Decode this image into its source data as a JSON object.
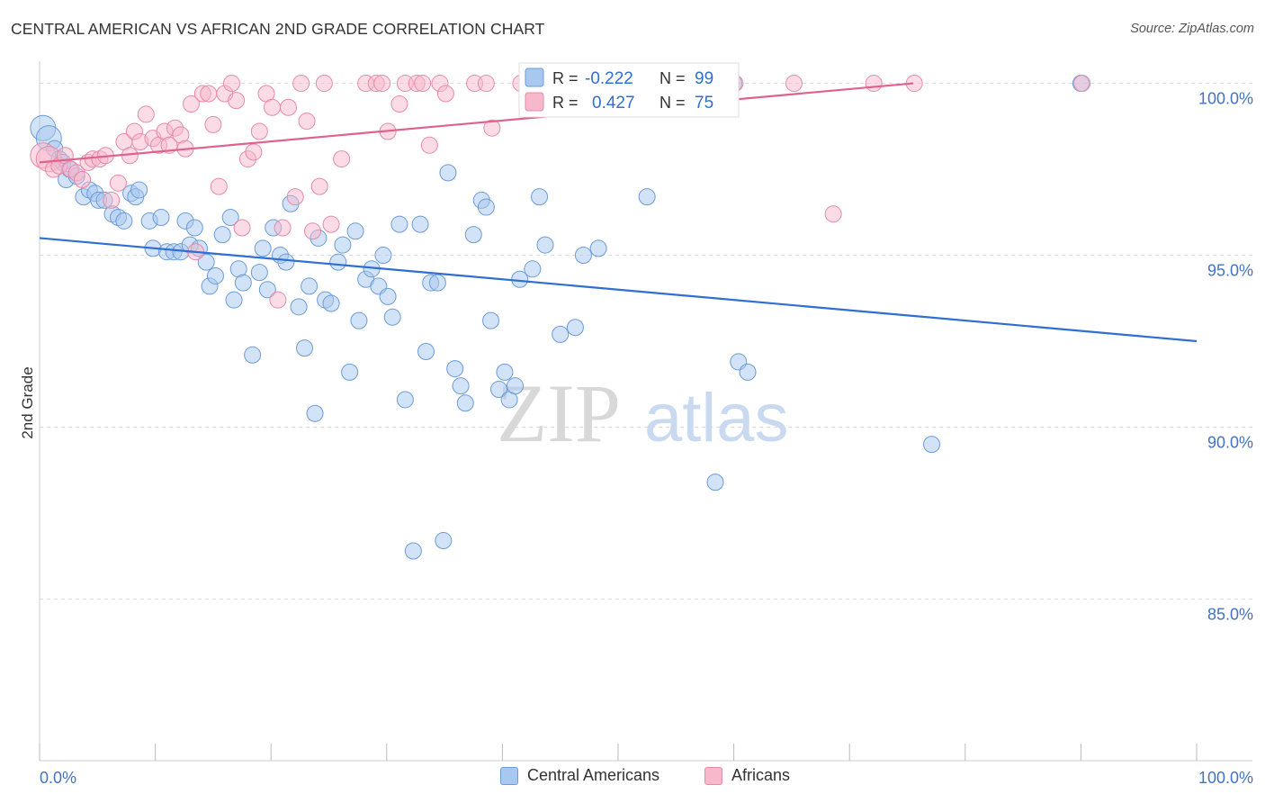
{
  "header": {
    "title": "CENTRAL AMERICAN VS AFRICAN 2ND GRADE CORRELATION CHART",
    "source": "Source: ZipAtlas.com"
  },
  "watermark": {
    "zip": "ZIP",
    "atlas": "atlas"
  },
  "colors": {
    "blue_fill": "#a8c8f0",
    "blue_stroke": "#6b9bd8",
    "blue_line": "#2f6fd0",
    "pink_fill": "#f7b8cb",
    "pink_stroke": "#e68aa8",
    "pink_line": "#e0608e",
    "axis_text": "#4472c4",
    "grid": "#dddddd"
  },
  "legend": {
    "rows": [
      {
        "r_label": "R =",
        "r_value": "-0.222",
        "n_label": "N =",
        "n_value": "99",
        "color": "blue"
      },
      {
        "r_label": "R =",
        "r_value": "0.427",
        "n_label": "N =",
        "n_value": "75",
        "color": "pink"
      }
    ]
  },
  "bottom_legend": [
    {
      "label": "Central Americans",
      "color": "blue"
    },
    {
      "label": "Africans",
      "color": "pink"
    }
  ],
  "chart_data": {
    "type": "scatter",
    "xlabel": "",
    "ylabel": "2nd Grade",
    "xlim": [
      0,
      100
    ],
    "ylim": [
      80.3,
      100.8
    ],
    "x_tick_labels": [
      "0.0%",
      "100.0%"
    ],
    "y_ticks": [
      85,
      90,
      95,
      100
    ],
    "y_tick_labels": [
      "85.0%",
      "90.0%",
      "95.0%",
      "100.0%"
    ],
    "grid": true,
    "series": [
      {
        "name": "Central Americans",
        "color": "blue",
        "trend": {
          "x": [
            0,
            100
          ],
          "y": [
            95.5,
            92.5
          ]
        },
        "points": [
          [
            0.3,
            98.7
          ],
          [
            0.8,
            98.4
          ],
          [
            1.3,
            98.1
          ],
          [
            1.7,
            97.8
          ],
          [
            2.0,
            97.7
          ],
          [
            2.3,
            97.2
          ],
          [
            2.6,
            97.5
          ],
          [
            3.2,
            97.3
          ],
          [
            3.8,
            96.7
          ],
          [
            4.3,
            96.9
          ],
          [
            4.8,
            96.8
          ],
          [
            5.1,
            96.6
          ],
          [
            5.6,
            96.6
          ],
          [
            6.3,
            96.2
          ],
          [
            6.8,
            96.1
          ],
          [
            7.3,
            96.0
          ],
          [
            7.9,
            96.8
          ],
          [
            8.3,
            96.7
          ],
          [
            8.6,
            96.9
          ],
          [
            9.5,
            96.0
          ],
          [
            9.8,
            95.2
          ],
          [
            10.5,
            96.1
          ],
          [
            11.0,
            95.1
          ],
          [
            11.6,
            95.1
          ],
          [
            12.2,
            95.1
          ],
          [
            12.6,
            96.0
          ],
          [
            13.0,
            95.3
          ],
          [
            13.4,
            95.8
          ],
          [
            13.8,
            95.2
          ],
          [
            14.4,
            94.8
          ],
          [
            14.7,
            94.1
          ],
          [
            15.2,
            94.4
          ],
          [
            15.8,
            95.6
          ],
          [
            16.5,
            96.1
          ],
          [
            16.8,
            93.7
          ],
          [
            17.2,
            94.6
          ],
          [
            17.6,
            94.2
          ],
          [
            18.4,
            92.1
          ],
          [
            19.0,
            94.5
          ],
          [
            19.3,
            95.2
          ],
          [
            19.7,
            94.0
          ],
          [
            20.2,
            95.8
          ],
          [
            20.8,
            95.0
          ],
          [
            21.3,
            94.8
          ],
          [
            21.7,
            96.5
          ],
          [
            22.4,
            93.5
          ],
          [
            22.9,
            92.3
          ],
          [
            23.3,
            94.1
          ],
          [
            23.8,
            90.4
          ],
          [
            24.1,
            95.5
          ],
          [
            24.7,
            93.7
          ],
          [
            25.2,
            93.6
          ],
          [
            25.8,
            94.8
          ],
          [
            26.2,
            95.3
          ],
          [
            26.8,
            91.6
          ],
          [
            27.3,
            95.7
          ],
          [
            27.6,
            93.1
          ],
          [
            28.2,
            94.3
          ],
          [
            28.7,
            94.6
          ],
          [
            29.3,
            94.1
          ],
          [
            29.7,
            95.0
          ],
          [
            30.1,
            93.8
          ],
          [
            30.5,
            93.2
          ],
          [
            31.1,
            95.9
          ],
          [
            31.6,
            90.8
          ],
          [
            32.3,
            86.4
          ],
          [
            32.9,
            95.9
          ],
          [
            33.4,
            92.2
          ],
          [
            33.8,
            94.2
          ],
          [
            34.4,
            94.2
          ],
          [
            34.9,
            86.7
          ],
          [
            35.3,
            97.4
          ],
          [
            35.9,
            91.7
          ],
          [
            36.4,
            91.2
          ],
          [
            36.8,
            90.7
          ],
          [
            37.5,
            95.6
          ],
          [
            38.2,
            96.6
          ],
          [
            38.6,
            96.4
          ],
          [
            39.0,
            93.1
          ],
          [
            39.7,
            91.1
          ],
          [
            40.2,
            91.6
          ],
          [
            40.6,
            90.8
          ],
          [
            41.1,
            91.2
          ],
          [
            41.5,
            94.3
          ],
          [
            42.6,
            94.6
          ],
          [
            43.2,
            96.7
          ],
          [
            43.7,
            95.3
          ],
          [
            45.0,
            92.7
          ],
          [
            46.3,
            92.9
          ],
          [
            47.0,
            95.0
          ],
          [
            48.3,
            95.2
          ],
          [
            52.0,
            100.0
          ],
          [
            52.5,
            96.7
          ],
          [
            58.4,
            88.4
          ],
          [
            60.0,
            100.0
          ],
          [
            60.4,
            91.9
          ],
          [
            61.2,
            91.6
          ],
          [
            77.1,
            89.5
          ],
          [
            90.0,
            100.0
          ]
        ]
      },
      {
        "name": "Africans",
        "color": "pink",
        "trend": {
          "x": [
            0,
            75.5
          ],
          "y": [
            97.7,
            100.0
          ]
        },
        "points": [
          [
            0.3,
            97.9
          ],
          [
            0.8,
            97.8
          ],
          [
            1.2,
            97.5
          ],
          [
            1.7,
            97.6
          ],
          [
            2.2,
            97.9
          ],
          [
            2.7,
            97.5
          ],
          [
            3.2,
            97.4
          ],
          [
            3.7,
            97.2
          ],
          [
            4.2,
            97.7
          ],
          [
            4.6,
            97.8
          ],
          [
            5.2,
            97.8
          ],
          [
            5.7,
            97.9
          ],
          [
            6.2,
            96.6
          ],
          [
            6.8,
            97.1
          ],
          [
            7.3,
            98.3
          ],
          [
            7.8,
            97.9
          ],
          [
            8.2,
            98.6
          ],
          [
            8.7,
            98.3
          ],
          [
            9.2,
            99.1
          ],
          [
            9.8,
            98.4
          ],
          [
            10.3,
            98.2
          ],
          [
            10.8,
            98.6
          ],
          [
            11.2,
            98.2
          ],
          [
            11.7,
            98.7
          ],
          [
            12.2,
            98.5
          ],
          [
            12.6,
            98.1
          ],
          [
            13.1,
            99.4
          ],
          [
            13.5,
            95.1
          ],
          [
            14.1,
            99.7
          ],
          [
            14.6,
            99.7
          ],
          [
            15.0,
            98.8
          ],
          [
            15.5,
            97.0
          ],
          [
            16.0,
            99.7
          ],
          [
            16.6,
            100.0
          ],
          [
            17.0,
            99.5
          ],
          [
            17.5,
            95.8
          ],
          [
            18.0,
            97.8
          ],
          [
            18.5,
            98.0
          ],
          [
            19.0,
            98.6
          ],
          [
            19.6,
            99.7
          ],
          [
            20.1,
            99.3
          ],
          [
            20.6,
            93.7
          ],
          [
            21.0,
            95.8
          ],
          [
            21.5,
            99.3
          ],
          [
            22.1,
            96.7
          ],
          [
            22.6,
            100.0
          ],
          [
            23.1,
            98.9
          ],
          [
            23.6,
            95.7
          ],
          [
            24.2,
            97.0
          ],
          [
            24.6,
            100.0
          ],
          [
            25.2,
            95.9
          ],
          [
            26.1,
            97.8
          ],
          [
            28.2,
            100.0
          ],
          [
            29.1,
            100.0
          ],
          [
            29.6,
            100.0
          ],
          [
            30.1,
            98.6
          ],
          [
            31.1,
            99.4
          ],
          [
            31.6,
            100.0
          ],
          [
            32.6,
            100.0
          ],
          [
            33.1,
            100.0
          ],
          [
            33.7,
            98.2
          ],
          [
            34.6,
            100.0
          ],
          [
            35.1,
            99.7
          ],
          [
            37.6,
            100.0
          ],
          [
            38.6,
            100.0
          ],
          [
            39.1,
            98.7
          ],
          [
            41.6,
            100.0
          ],
          [
            47.1,
            100.0
          ],
          [
            52.1,
            100.0
          ],
          [
            60.1,
            100.0
          ],
          [
            65.2,
            100.0
          ],
          [
            68.6,
            96.2
          ],
          [
            72.1,
            100.0
          ],
          [
            75.6,
            100.0
          ],
          [
            90.1,
            100.0
          ]
        ]
      }
    ]
  }
}
